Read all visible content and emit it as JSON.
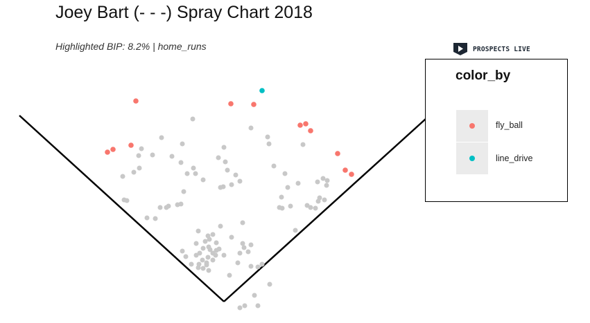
{
  "title": "Joey Bart (- - -) Spray Chart 2018",
  "subtitle": "Highlighted BIP: 8.2% | home_runs",
  "logo": {
    "text": "PROSPECTS LIVE",
    "icon": "play-shield-icon"
  },
  "legend": {
    "title": "color_by",
    "items": [
      {
        "label": "fly_ball",
        "color": "#F8766D"
      },
      {
        "label": "line_drive",
        "color": "#00BFC4"
      }
    ]
  },
  "chart_data": {
    "type": "scatter",
    "title": "Joey Bart (- - -) Spray Chart 2018",
    "subtitle": "Highlighted BIP: 8.2% | home_runs",
    "xlabel": "",
    "ylabel": "",
    "grid": false,
    "legend_position": "right",
    "background_color": "#C8C8C8",
    "series": [
      {
        "name": "fly_ball",
        "color": "#F8766D",
        "points": [
          [
            196,
            146
          ],
          [
            333,
            150
          ],
          [
            366,
            151
          ],
          [
            433,
            181
          ],
          [
            441,
            179
          ],
          [
            448,
            189
          ],
          [
            189,
            210
          ],
          [
            163,
            216
          ],
          [
            155,
            220
          ],
          [
            487,
            222
          ],
          [
            498,
            246
          ],
          [
            507,
            252
          ]
        ]
      },
      {
        "name": "line_drive",
        "color": "#00BFC4",
        "points": [
          [
            378,
            131
          ]
        ]
      },
      {
        "name": "",
        "color": "#C8C8C8",
        "points": [
          [
            278,
            172
          ],
          [
            362,
            185
          ],
          [
            233,
            199
          ],
          [
            386,
            198
          ],
          [
            263,
            208
          ],
          [
            204,
            215
          ],
          [
            323,
            213
          ],
          [
            388,
            208
          ],
          [
            437,
            209
          ],
          [
            200,
            225
          ],
          [
            220,
            224
          ],
          [
            248,
            226
          ],
          [
            315,
            228
          ],
          [
            325,
            234
          ],
          [
            201,
            243
          ],
          [
            261,
            235
          ],
          [
            177,
            255
          ],
          [
            193,
            249
          ],
          [
            279,
            243
          ],
          [
            328,
            246
          ],
          [
            340,
            253
          ],
          [
            270,
            251
          ],
          [
            282,
            251
          ],
          [
            293,
            260
          ],
          [
            395,
            240
          ],
          [
            411,
            251
          ],
          [
            346,
            262
          ],
          [
            430,
            265
          ],
          [
            458,
            263
          ],
          [
            466,
            258
          ],
          [
            472,
            261
          ],
          [
            471,
            268
          ],
          [
            415,
            271
          ],
          [
            334,
            267
          ],
          [
            322,
            270
          ],
          [
            318,
            271
          ],
          [
            265,
            277
          ],
          [
            179,
            289
          ],
          [
            183,
            290
          ],
          [
            406,
            285
          ],
          [
            403,
            300
          ],
          [
            407,
            301
          ],
          [
            461,
            286
          ],
          [
            468,
            289
          ],
          [
            459,
            291
          ],
          [
            455,
            301
          ],
          [
            419,
            298
          ],
          [
            443,
            297
          ],
          [
            448,
            300
          ],
          [
            231,
            300
          ],
          [
            243,
            298
          ],
          [
            240,
            300
          ],
          [
            256,
            296
          ],
          [
            261,
            295
          ],
          [
            212,
            315
          ],
          [
            224,
            316
          ],
          [
            350,
            322
          ],
          [
            318,
            327
          ],
          [
            286,
            334
          ],
          [
            426,
            333
          ],
          [
            307,
            339
          ],
          [
            300,
            341
          ],
          [
            334,
            343
          ],
          [
            302,
            346
          ],
          [
            296,
            349
          ],
          [
            312,
            351
          ],
          [
            350,
            352
          ],
          [
            352,
            358
          ],
          [
            362,
            354
          ],
          [
            283,
            352
          ],
          [
            301,
            357
          ],
          [
            293,
            359
          ],
          [
            303,
            361
          ],
          [
            312,
            362
          ],
          [
            316,
            360
          ],
          [
            307,
            366
          ],
          [
            263,
            363
          ],
          [
            268,
            371
          ],
          [
            283,
            369
          ],
          [
            288,
            366
          ],
          [
            300,
            372
          ],
          [
            311,
            369
          ],
          [
            323,
            369
          ],
          [
            346,
            366
          ],
          [
            358,
            364
          ],
          [
            292,
            376
          ],
          [
            298,
            380
          ],
          [
            307,
            376
          ],
          [
            343,
            380
          ],
          [
            287,
            382
          ],
          [
            293,
            388
          ],
          [
            298,
            383
          ],
          [
            301,
            391
          ],
          [
            276,
            382
          ],
          [
            286,
            387
          ],
          [
            362,
            385
          ],
          [
            378,
            382
          ],
          [
            372,
            386
          ],
          [
            389,
            411
          ],
          [
            331,
            398
          ],
          [
            367,
            427
          ],
          [
            346,
            445
          ],
          [
            353,
            442
          ],
          [
            372,
            442
          ]
        ]
      }
    ]
  }
}
